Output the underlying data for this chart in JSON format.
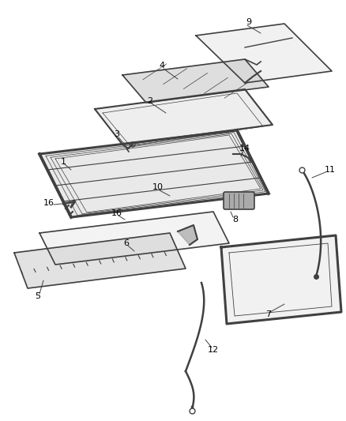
{
  "title": "",
  "bg_color": "#ffffff",
  "line_color": "#404040",
  "label_color": "#000000",
  "figsize": [
    4.38,
    5.33
  ],
  "dpi": 100
}
